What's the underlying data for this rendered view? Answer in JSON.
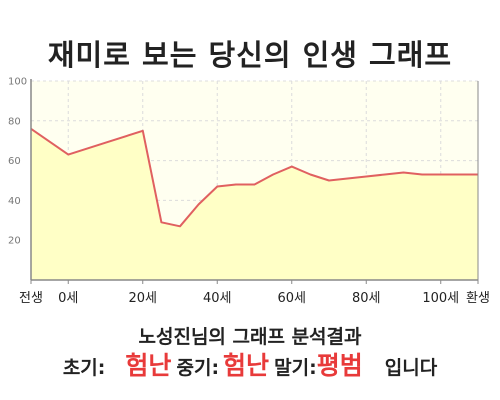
{
  "header": {
    "title": "재미로 보는 당신의 인생 그래프"
  },
  "chart_data": {
    "type": "area",
    "title": "재미로 보는 당신의 인생 그래프",
    "xlabel": "",
    "ylabel": "",
    "ylim": [
      0,
      100
    ],
    "yticks": [
      20,
      40,
      60,
      80,
      100
    ],
    "xlim": [
      -10,
      110
    ],
    "xticks": [
      {
        "x": -10,
        "label": "전생"
      },
      {
        "x": 0,
        "label": "0세"
      },
      {
        "x": 20,
        "label": "20세"
      },
      {
        "x": 40,
        "label": "40세"
      },
      {
        "x": 60,
        "label": "60세"
      },
      {
        "x": 80,
        "label": "80세"
      },
      {
        "x": 100,
        "label": "100세"
      },
      {
        "x": 110,
        "label": "환생"
      }
    ],
    "grid": true,
    "series": [
      {
        "x": [
          -10,
          0,
          10,
          20,
          25,
          30,
          35,
          40,
          45,
          50,
          55,
          60,
          65,
          70,
          75,
          80,
          85,
          90,
          95,
          100,
          105,
          110
        ],
        "values": [
          76,
          63,
          69,
          75,
          29,
          27,
          38,
          47,
          48,
          48,
          53,
          57,
          53,
          50,
          51,
          52,
          53,
          54,
          53,
          53,
          53,
          53
        ]
      }
    ],
    "colors": {
      "line": "#e06060",
      "fill": "#ffffc6",
      "plot_bg": "#fffff0",
      "grid": "#dcdcdc",
      "axis": "#888888"
    }
  },
  "result": {
    "title": "노성진님의 그래프 분석결과",
    "early_label": "초기:",
    "early_value": "험난",
    "mid_label": "중기:",
    "mid_value": "험난",
    "late_label": "말기:",
    "late_value": "평범",
    "suffix": "입니다"
  }
}
